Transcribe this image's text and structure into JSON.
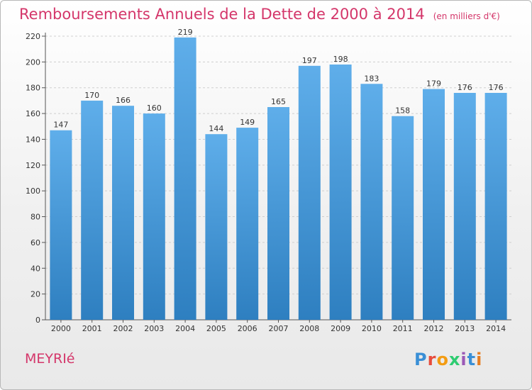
{
  "title": "Remboursements Annuels de la Dette de 2000 à 2014",
  "subtitle": "(en milliers d'€)",
  "city": "MEYRIé",
  "logo": "Proxiti",
  "colors": {
    "title": "#d4366a",
    "bar_top": "#5faeea",
    "bar_bottom": "#2e7fc0"
  },
  "chart_data": {
    "type": "bar",
    "title": "Remboursements Annuels de la Dette de 2000 à 2014",
    "categories": [
      "2000",
      "2001",
      "2002",
      "2003",
      "2004",
      "2005",
      "2006",
      "2007",
      "2008",
      "2009",
      "2010",
      "2011",
      "2012",
      "2013",
      "2014"
    ],
    "values": [
      147,
      170,
      166,
      160,
      219,
      144,
      149,
      165,
      197,
      198,
      183,
      158,
      179,
      176,
      176
    ],
    "ylim": [
      0,
      220
    ],
    "yticks": [
      0,
      20,
      40,
      60,
      80,
      100,
      120,
      140,
      160,
      180,
      200,
      220
    ],
    "xlabel": "",
    "ylabel": "",
    "grid": true,
    "data_labels": true
  }
}
